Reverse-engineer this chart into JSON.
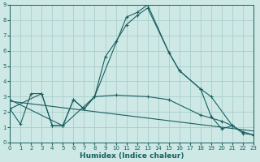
{
  "xlabel": "Humidex (Indice chaleur)",
  "xlim": [
    0,
    23
  ],
  "ylim": [
    0,
    9
  ],
  "xticks": [
    0,
    1,
    2,
    3,
    4,
    5,
    6,
    7,
    8,
    9,
    10,
    11,
    12,
    13,
    14,
    15,
    16,
    17,
    18,
    19,
    20,
    21,
    22,
    23
  ],
  "yticks": [
    0,
    1,
    2,
    3,
    4,
    5,
    6,
    7,
    8,
    9
  ],
  "bg_color": "#cde8e5",
  "grid_color": "#a8cece",
  "line_color": "#1a6060",
  "line1_x": [
    0,
    1,
    2,
    3,
    4,
    5,
    6,
    7,
    8,
    11,
    12,
    13,
    15,
    16,
    18,
    19,
    21
  ],
  "line1_y": [
    2.2,
    1.2,
    3.2,
    3.2,
    1.1,
    1.1,
    2.8,
    2.2,
    3.0,
    8.2,
    8.5,
    9.0,
    5.9,
    4.7,
    3.5,
    3.0,
    1.1
  ],
  "line2_x": [
    0,
    3,
    4,
    5,
    6,
    7,
    8,
    9,
    10,
    11,
    12,
    13,
    15,
    16,
    18,
    19,
    20,
    21,
    22,
    23
  ],
  "line2_y": [
    2.2,
    3.2,
    1.1,
    1.1,
    2.8,
    2.2,
    3.0,
    5.6,
    6.6,
    7.7,
    8.3,
    8.8,
    5.9,
    4.7,
    3.5,
    1.7,
    0.9,
    1.1,
    0.6,
    0.5
  ],
  "line3_x": [
    0,
    5,
    8,
    10,
    13,
    15,
    18,
    20,
    21,
    22,
    23
  ],
  "line3_y": [
    2.8,
    1.1,
    3.0,
    3.1,
    3.0,
    2.8,
    1.8,
    1.4,
    1.1,
    0.7,
    0.5
  ],
  "line4_x": [
    0,
    23
  ],
  "line4_y": [
    2.7,
    0.75
  ]
}
